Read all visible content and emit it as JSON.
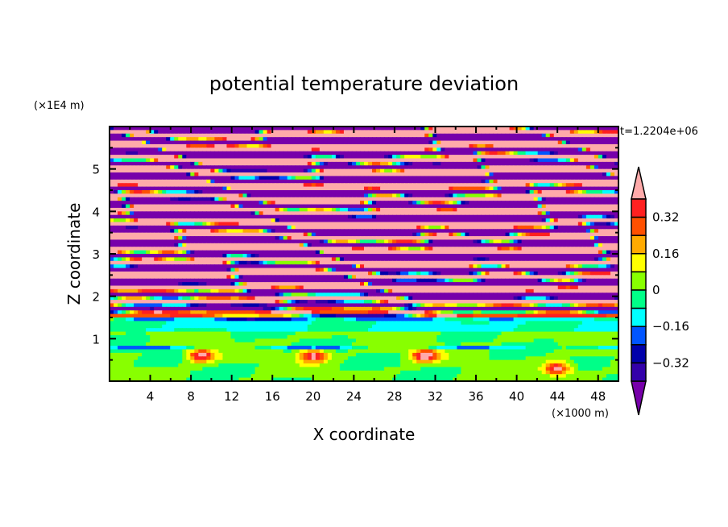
{
  "chart_data": {
    "type": "heatmap",
    "subtype": "filled-contour",
    "title": "potential temperature deviation",
    "xlabel": "X coordinate",
    "ylabel": "Z coordinate",
    "x_unit": "(×1000 m)",
    "y_unit": "(×1E4 m)",
    "time_label": "t=1.2204e+06",
    "xlim": [
      0,
      50
    ],
    "ylim": [
      0,
      6
    ],
    "x_ticks": [
      "4",
      "8",
      "12",
      "16",
      "20",
      "24",
      "28",
      "32",
      "36",
      "40",
      "44",
      "48"
    ],
    "x_tick_values": [
      4,
      8,
      12,
      16,
      20,
      24,
      28,
      32,
      36,
      40,
      44,
      48
    ],
    "y_ticks": [
      "1",
      "2",
      "3",
      "4",
      "5"
    ],
    "y_tick_values": [
      1,
      2,
      3,
      4,
      5
    ],
    "levels": [
      -0.4,
      -0.32,
      -0.24,
      -0.16,
      -0.08,
      0,
      0.08,
      0.16,
      0.24,
      0.32,
      0.4
    ],
    "colorbar": {
      "labels": [
        "0.32",
        "0.16",
        "0",
        "−0.16",
        "−0.32"
      ],
      "label_values": [
        0.32,
        0.16,
        0,
        -0.16,
        -0.32
      ],
      "over_color": "#ffaaaa",
      "under_color": "#7700aa",
      "colors_top_to_bottom": [
        "#ff2020",
        "#ff5000",
        "#ffaa00",
        "#ffff00",
        "#88ff00",
        "#00ff88",
        "#00ffff",
        "#0055ff",
        "#0000aa",
        "#3300aa"
      ],
      "extend": "both"
    }
  }
}
